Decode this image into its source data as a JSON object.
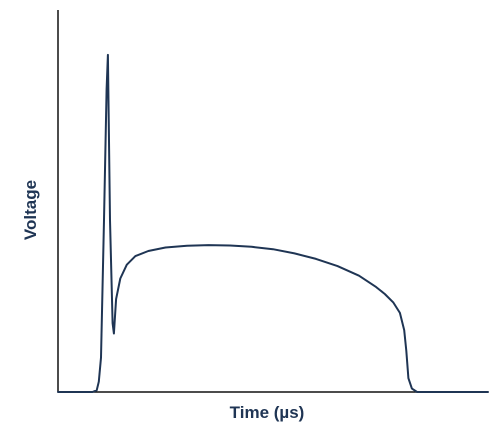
{
  "chart_data": {
    "type": "line",
    "title": "",
    "xlabel": "Time (µs)",
    "ylabel": "Voltage",
    "xlim": [
      0,
      100
    ],
    "ylim": [
      0,
      100
    ],
    "grid": false,
    "legend": "none",
    "tick_labels": false,
    "series": [
      {
        "color": "#1f3554",
        "points": [
          [
            0,
            0
          ],
          [
            8,
            0
          ],
          [
            9,
            0.5
          ],
          [
            9.5,
            3
          ],
          [
            10,
            10
          ],
          [
            10.7,
            50
          ],
          [
            11.3,
            88
          ],
          [
            11.6,
            98
          ],
          [
            12.1,
            50
          ],
          [
            12.7,
            20
          ],
          [
            13.0,
            17
          ],
          [
            13.5,
            27
          ],
          [
            14.5,
            33
          ],
          [
            16,
            37
          ],
          [
            18,
            39.5
          ],
          [
            21,
            41
          ],
          [
            25,
            42
          ],
          [
            30,
            42.5
          ],
          [
            35,
            42.7
          ],
          [
            40,
            42.6
          ],
          [
            45,
            42.2
          ],
          [
            50,
            41.5
          ],
          [
            55,
            40.3
          ],
          [
            60,
            38.7
          ],
          [
            65,
            36.6
          ],
          [
            70,
            33.8
          ],
          [
            74,
            30.5
          ],
          [
            76,
            28.5
          ],
          [
            78,
            26
          ],
          [
            79.5,
            23
          ],
          [
            80.5,
            18
          ],
          [
            81,
            12
          ],
          [
            81.5,
            4
          ],
          [
            82.3,
            1
          ],
          [
            83.5,
            0
          ],
          [
            100,
            0
          ]
        ]
      }
    ]
  },
  "colors": {
    "series": "#1f3554",
    "axis": "#111111"
  }
}
